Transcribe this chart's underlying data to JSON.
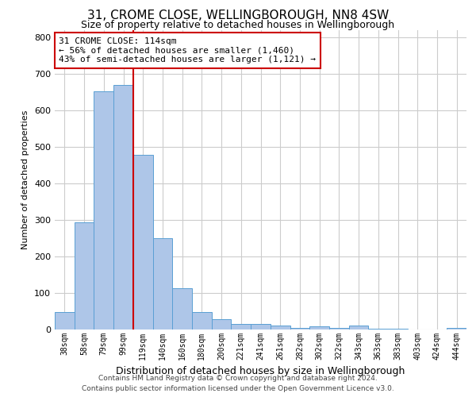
{
  "title": "31, CROME CLOSE, WELLINGBOROUGH, NN8 4SW",
  "subtitle": "Size of property relative to detached houses in Wellingborough",
  "xlabel": "Distribution of detached houses by size in Wellingborough",
  "ylabel": "Number of detached properties",
  "categories": [
    "38sqm",
    "58sqm",
    "79sqm",
    "99sqm",
    "119sqm",
    "140sqm",
    "160sqm",
    "180sqm",
    "200sqm",
    "221sqm",
    "241sqm",
    "261sqm",
    "282sqm",
    "302sqm",
    "322sqm",
    "343sqm",
    "363sqm",
    "383sqm",
    "403sqm",
    "424sqm",
    "444sqm"
  ],
  "values": [
    47,
    293,
    652,
    668,
    478,
    250,
    113,
    48,
    28,
    15,
    15,
    10,
    5,
    8,
    5,
    10,
    3,
    2,
    0,
    0,
    5
  ],
  "bar_color": "#aec6e8",
  "bar_edge_color": "#5a9fd4",
  "annotation_line0": "31 CROME CLOSE: 114sqm",
  "annotation_line1": "← 56% of detached houses are smaller (1,460)",
  "annotation_line2": "43% of semi-detached houses are larger (1,121) →",
  "vline_color": "#cc0000",
  "box_edge_color": "#cc0000",
  "ylim": [
    0,
    820
  ],
  "yticks": [
    0,
    100,
    200,
    300,
    400,
    500,
    600,
    700,
    800
  ],
  "footer_line1": "Contains HM Land Registry data © Crown copyright and database right 2024.",
  "footer_line2": "Contains public sector information licensed under the Open Government Licence v3.0.",
  "bg_color": "#ffffff",
  "grid_color": "#cccccc",
  "vline_x": 3.5
}
